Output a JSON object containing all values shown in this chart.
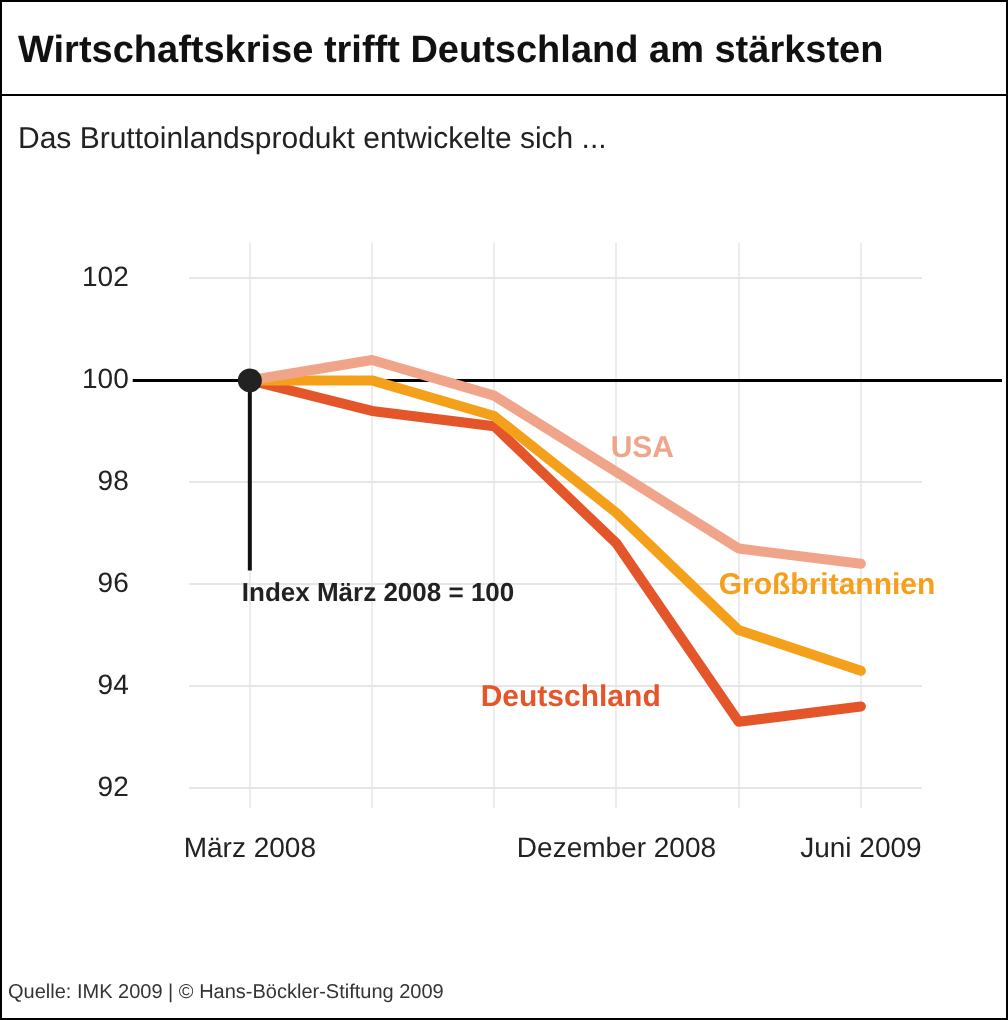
{
  "chart_data": {
    "type": "line",
    "title": "Wirtschaftskrise trifft Deutschland am stärksten",
    "subtitle": "Das Bruttoinlandsprodukt entwickelte sich ...",
    "categories": [
      "März 2008",
      null,
      null,
      "Dezember 2008",
      null,
      "Juni 2009"
    ],
    "series": [
      {
        "name": "USA",
        "color": "#f0a58a",
        "values": [
          100,
          100.4,
          99.7,
          98.2,
          96.7,
          96.4
        ]
      },
      {
        "name": "Großbritannien",
        "color": "#f5a01a",
        "values": [
          100,
          100.0,
          99.3,
          97.4,
          95.1,
          94.3
        ]
      },
      {
        "name": "Deutschland",
        "color": "#e5552a",
        "values": [
          100,
          99.4,
          99.1,
          96.8,
          93.3,
          93.6
        ]
      }
    ],
    "ylim": [
      91.6,
      102.7
    ],
    "yticks": [
      92,
      94,
      96,
      98,
      100,
      102
    ],
    "grid": true,
    "legend": false,
    "marker": "none",
    "line_style": "solid",
    "ref_lines": [
      {
        "axis": "y",
        "value": 100,
        "color": "#000000"
      }
    ],
    "annotations": [
      {
        "text": "Index März 2008 = 100",
        "x": "März 2008",
        "y": 100
      },
      "Quelle: IMK 2009 | © Hans-Böckler-Stiftung 2009"
    ]
  }
}
